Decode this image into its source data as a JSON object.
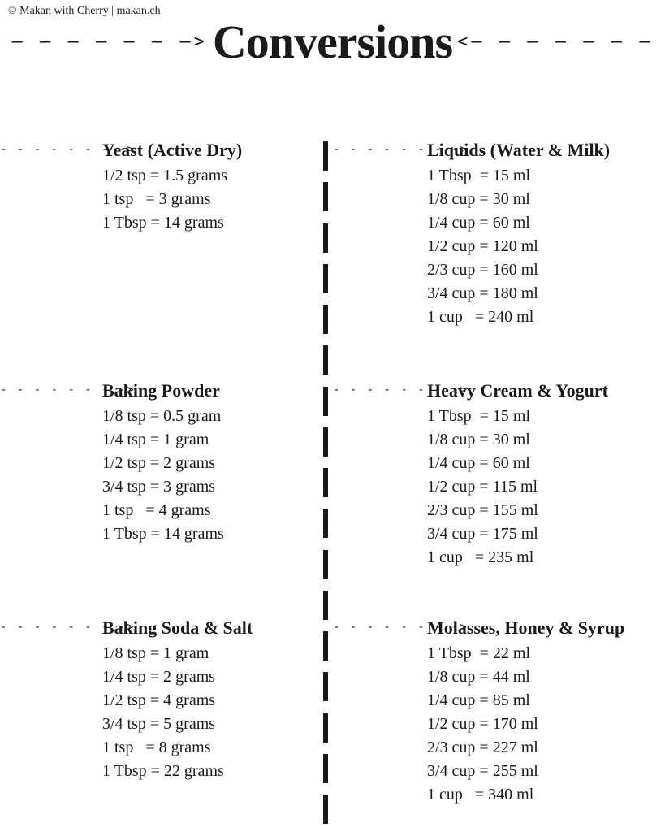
{
  "copyright": "© Makan with Cherry | makan.ch",
  "title": "Conversions",
  "arrow_right": "– – – – – – –>",
  "arrow_left": "<– – – – – – –",
  "section_arrow": "- - - - - - - ->",
  "left": [
    {
      "title": "Yeast (Active Dry)",
      "rows": [
        "1/2 tsp = 1.5 grams",
        "1 tsp   = 3 grams",
        "1 Tbsp = 14 grams"
      ]
    },
    {
      "title": "Baking Powder",
      "rows": [
        "1/8 tsp = 0.5 gram",
        "1/4 tsp = 1 gram",
        "1/2 tsp = 2 grams",
        "3/4 tsp = 3 grams",
        "1 tsp   = 4 grams",
        "1 Tbsp = 14 grams"
      ]
    },
    {
      "title": "Baking Soda & Salt",
      "rows": [
        "1/8 tsp = 1 gram",
        "1/4 tsp = 2 grams",
        "1/2 tsp = 4 grams",
        "3/4 tsp = 5 grams",
        "1 tsp   = 8 grams",
        "1 Tbsp = 22 grams"
      ]
    }
  ],
  "right": [
    {
      "title": "Liquids (Water & Milk)",
      "rows": [
        "1 Tbsp  = 15 ml",
        "1/8 cup = 30 ml",
        "1/4 cup = 60 ml",
        "1/2 cup = 120 ml",
        "2/3 cup = 160 ml",
        "3/4 cup = 180 ml",
        "1 cup   = 240 ml"
      ]
    },
    {
      "title": "Heavy Cream & Yogurt",
      "rows": [
        "1 Tbsp  = 15 ml",
        "1/8 cup = 30 ml",
        "1/4 cup = 60 ml",
        "1/2 cup = 115 ml",
        "2/3 cup = 155 ml",
        "3/4 cup = 175 ml",
        "1 cup   = 235 ml"
      ]
    },
    {
      "title": "Molasses, Honey & Syrup",
      "rows": [
        "1 Tbsp  = 22 ml",
        "1/8 cup = 44 ml",
        "1/4 cup = 85 ml",
        "1/2 cup = 170 ml",
        "2/3 cup = 227 ml",
        "3/4 cup = 255 ml",
        "1 cup   = 340 ml"
      ]
    }
  ],
  "style": {
    "text_color": "#1a1a1a",
    "bg_color": "#ffffff",
    "title_fontsize": 58,
    "section_title_fontsize": 22,
    "row_fontsize": 20,
    "divider_dash_count": 17
  }
}
